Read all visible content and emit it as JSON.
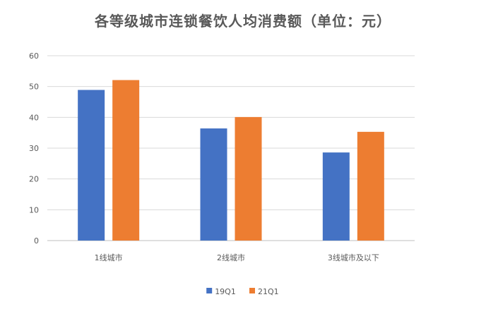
{
  "chart_data": {
    "type": "bar",
    "title": "各等级城市连锁餐饮人均消费额（单位：元）",
    "categories": [
      "1线城市",
      "2线城市",
      "3线城市及以下"
    ],
    "series": [
      {
        "name": "19Q1",
        "color": "#4472C4",
        "values": [
          48.9,
          36.4,
          28.6
        ]
      },
      {
        "name": "21Q1",
        "color": "#ED7D31",
        "values": [
          52.1,
          40.1,
          35.3
        ]
      }
    ],
    "ylim": [
      0,
      60
    ],
    "yticks": [
      0,
      10,
      20,
      30,
      40,
      50,
      60
    ],
    "grid": true,
    "legend_position": "bottom"
  }
}
